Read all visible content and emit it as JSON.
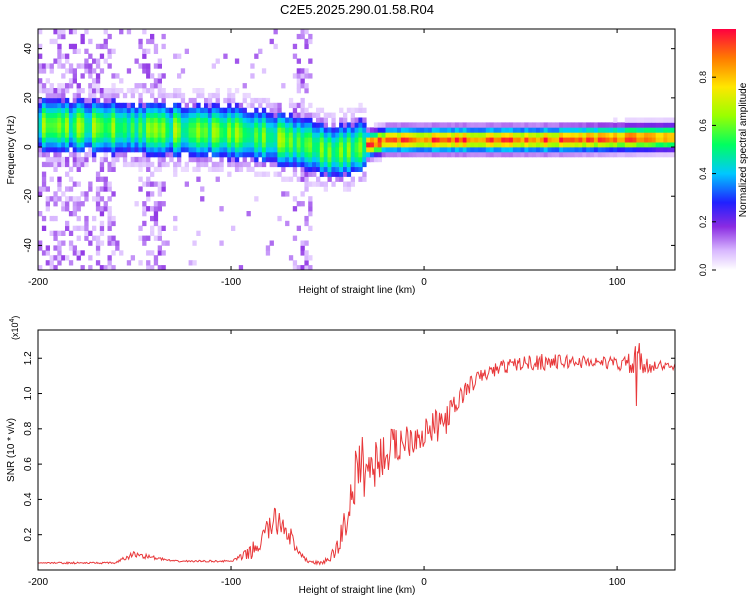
{
  "title": "C2E5.2025.290.01.58.R04",
  "colors": {
    "snr_line": "#e8393b",
    "frame": "#000000"
  },
  "chart_data": [
    {
      "type": "heatmap",
      "title": "C2E5.2025.290.01.58.R04",
      "xlabel": "Height of straight line (km)",
      "ylabel": "Frequency (Hz)",
      "xlim": [
        -200,
        130
      ],
      "ylim": [
        -50,
        48
      ],
      "x_ticks": [
        -200,
        -100,
        0,
        100
      ],
      "x_tick_labels": [
        "-200",
        "-100",
        "0",
        "100"
      ],
      "y_ticks": [
        -40,
        -20,
        0,
        20,
        40
      ],
      "y_tick_labels": [
        "-40",
        "-20",
        "0",
        "20",
        "40"
      ],
      "ridge": {
        "description": "dominant frequency track",
        "points": [
          [
            -200,
            8
          ],
          [
            -160,
            7
          ],
          [
            -130,
            6
          ],
          [
            -100,
            5
          ],
          [
            -80,
            3
          ],
          [
            -60,
            0
          ],
          [
            -50,
            -3
          ],
          [
            -40,
            -2
          ],
          [
            -30,
            0
          ],
          [
            -20,
            2
          ],
          [
            0,
            2
          ],
          [
            60,
            2
          ],
          [
            100,
            2.5
          ],
          [
            130,
            3
          ]
        ]
      },
      "colorbar": {
        "label": "Normalized spectral amplitude",
        "range": [
          0,
          1
        ],
        "ticks": [
          0.0,
          0.2,
          0.4,
          0.6,
          0.8
        ],
        "tick_labels": [
          "0.0",
          "0.2",
          "0.4",
          "0.6",
          "0.8"
        ]
      },
      "grid": false
    },
    {
      "type": "line",
      "xlabel": "Height of straight line (km)",
      "ylabel": "SNR (10 * v/v)",
      "scale_label": "(x10",
      "scale_exponent": "4",
      "xlim": [
        -200,
        130
      ],
      "ylim": [
        0,
        1.36
      ],
      "x_ticks": [
        -200,
        -100,
        0,
        100
      ],
      "x_tick_labels": [
        "-200",
        "-100",
        "0",
        "100"
      ],
      "y_ticks": [
        0.2,
        0.4,
        0.6,
        0.8,
        1.0,
        1.2
      ],
      "y_tick_labels": [
        "0.2",
        "0.4",
        "0.6",
        "0.8",
        "1.0",
        "1.2"
      ],
      "grid": false,
      "series": [
        {
          "x": [
            -200,
            -190,
            -180,
            -170,
            -160,
            -150,
            -140,
            -130,
            -120,
            -110,
            -100,
            -95,
            -90,
            -85,
            -80,
            -75,
            -70,
            -68,
            -65,
            -60,
            -55,
            -50,
            -45,
            -40,
            -35,
            -32,
            -30,
            -28,
            -25,
            -20,
            -15,
            -10,
            -5,
            0,
            5,
            10,
            15,
            20,
            25,
            30,
            40,
            50,
            60,
            70,
            80,
            90,
            100,
            110,
            120,
            130
          ],
          "y": [
            0.04,
            0.04,
            0.04,
            0.04,
            0.04,
            0.09,
            0.07,
            0.05,
            0.05,
            0.05,
            0.05,
            0.07,
            0.1,
            0.15,
            0.25,
            0.28,
            0.22,
            0.15,
            0.09,
            0.05,
            0.04,
            0.05,
            0.12,
            0.3,
            0.55,
            0.6,
            0.58,
            0.56,
            0.62,
            0.66,
            0.7,
            0.74,
            0.76,
            0.78,
            0.8,
            0.84,
            0.9,
            1.0,
            1.06,
            1.1,
            1.15,
            1.17,
            1.18,
            1.18,
            1.18,
            1.18,
            1.17,
            1.16,
            1.16,
            1.15
          ],
          "noise": [
            0,
            0.005,
            0.005,
            0.005,
            0.005,
            0.02,
            0.01,
            0.005,
            0.005,
            0.005,
            0.005,
            0.02,
            0.04,
            0.06,
            0.08,
            0.09,
            0.07,
            0.05,
            0.02,
            0.01,
            0.01,
            0.02,
            0.06,
            0.12,
            0.16,
            0.18,
            0.17,
            0.16,
            0.14,
            0.12,
            0.12,
            0.11,
            0.1,
            0.1,
            0.1,
            0.09,
            0.08,
            0.06,
            0.05,
            0.04,
            0.04,
            0.04,
            0.05,
            0.04,
            0.04,
            0.03,
            0.04,
            0.08,
            0.03,
            0.02
          ]
        }
      ]
    }
  ]
}
